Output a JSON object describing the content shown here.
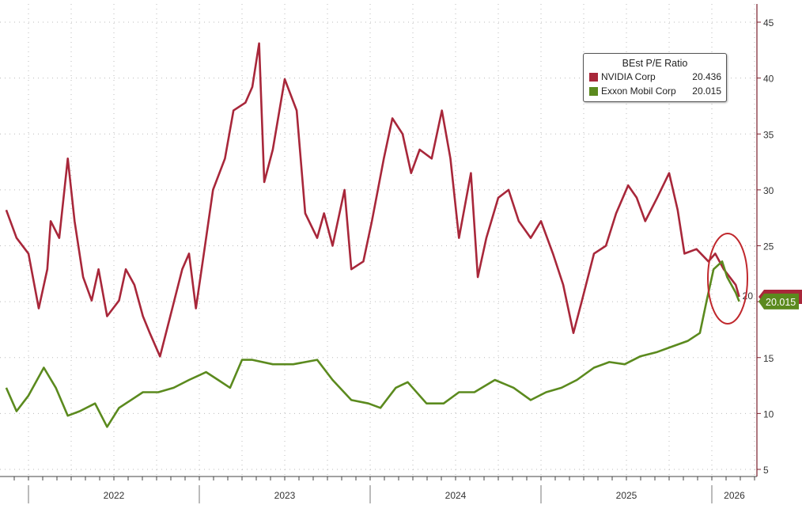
{
  "chart_data": {
    "type": "line",
    "title": "",
    "legend": {
      "title": "BEst P/E Ratio",
      "placement": "top-right"
    },
    "y_axis": {
      "position": "right",
      "range": [
        5,
        45
      ],
      "ticks": [
        5,
        10,
        15,
        20,
        25,
        30,
        35,
        40,
        45
      ]
    },
    "x_axis": {
      "tick_labels": [
        "2022",
        "2023",
        "2024",
        "2025",
        "2026"
      ],
      "range": [
        2021.87,
        2026.2
      ]
    },
    "grid": true,
    "series": [
      {
        "name": "NVIDIA Corp",
        "last_value": "20.436",
        "color": "#a8273a",
        "x": [
          2021.87,
          2021.93,
          2022.0,
          2022.06,
          2022.11,
          2022.13,
          2022.18,
          2022.23,
          2022.27,
          2022.32,
          2022.37,
          2022.41,
          2022.46,
          2022.53,
          2022.57,
          2022.62,
          2022.67,
          2022.71,
          2022.77,
          2022.83,
          2022.9,
          2022.94,
          2022.98,
          2023.04,
          2023.08,
          2023.15,
          2023.2,
          2023.27,
          2023.31,
          2023.35,
          2023.38,
          2023.43,
          2023.5,
          2023.57,
          2023.62,
          2023.69,
          2023.73,
          2023.78,
          2023.85,
          2023.89,
          2023.96,
          2024.01,
          2024.08,
          2024.13,
          2024.19,
          2024.24,
          2024.29,
          2024.36,
          2024.42,
          2024.47,
          2024.52,
          2024.59,
          2024.63,
          2024.68,
          2024.75,
          2024.81,
          2024.87,
          2024.94,
          2025.0,
          2025.07,
          2025.13,
          2025.19,
          2025.24,
          2025.31,
          2025.38,
          2025.44,
          2025.51,
          2025.56,
          2025.61,
          2025.68,
          2025.75,
          2025.8,
          2025.84,
          2025.91,
          2025.98,
          2026.02,
          2026.07,
          2026.14,
          2026.16
        ],
        "y": [
          28.2,
          25.7,
          24.3,
          19.4,
          22.9,
          27.2,
          25.7,
          32.8,
          27.2,
          22.2,
          20.1,
          22.9,
          18.7,
          20.1,
          22.9,
          21.5,
          18.7,
          17.2,
          15.1,
          18.7,
          22.9,
          24.3,
          19.4,
          25.7,
          30.0,
          32.8,
          37.1,
          37.8,
          39.2,
          43.1,
          30.7,
          33.6,
          39.9,
          37.1,
          27.9,
          25.7,
          27.9,
          25.0,
          30.0,
          22.9,
          23.6,
          27.2,
          32.8,
          36.4,
          35.0,
          31.5,
          33.6,
          32.8,
          37.1,
          32.8,
          25.7,
          31.5,
          22.2,
          25.7,
          29.3,
          30.0,
          27.2,
          25.7,
          27.2,
          24.3,
          21.5,
          17.2,
          20.1,
          24.3,
          25.0,
          27.9,
          30.4,
          29.3,
          27.2,
          29.3,
          31.5,
          28.2,
          24.3,
          24.7,
          23.6,
          24.3,
          22.9,
          21.5,
          20.436
        ]
      },
      {
        "name": "Exxon Mobil Corp",
        "last_value": "20.015",
        "color": "#5b8a1e",
        "x": [
          2021.87,
          2021.93,
          2022.0,
          2022.09,
          2022.16,
          2022.23,
          2022.3,
          2022.39,
          2022.46,
          2022.53,
          2022.6,
          2022.67,
          2022.76,
          2022.85,
          2022.94,
          2023.04,
          2023.11,
          2023.18,
          2023.25,
          2023.31,
          2023.43,
          2023.55,
          2023.69,
          2023.78,
          2023.89,
          2023.99,
          2024.06,
          2024.15,
          2024.22,
          2024.33,
          2024.43,
          2024.52,
          2024.61,
          2024.73,
          2024.84,
          2024.94,
          2025.03,
          2025.12,
          2025.21,
          2025.31,
          2025.4,
          2025.49,
          2025.58,
          2025.68,
          2025.77,
          2025.86,
          2025.93,
          2025.97,
          2026.01,
          2026.06,
          2026.09,
          2026.14,
          2026.16
        ],
        "y": [
          12.3,
          10.2,
          11.6,
          14.1,
          12.3,
          9.8,
          10.2,
          10.9,
          8.8,
          10.5,
          11.2,
          11.9,
          11.9,
          12.3,
          13.0,
          13.7,
          13.0,
          12.3,
          14.8,
          14.8,
          14.4,
          14.4,
          14.8,
          13.0,
          11.2,
          10.9,
          10.5,
          12.3,
          12.8,
          10.9,
          10.9,
          11.9,
          11.9,
          13.0,
          12.3,
          11.2,
          11.9,
          12.3,
          13.0,
          14.1,
          14.6,
          14.4,
          15.1,
          15.5,
          16.0,
          16.5,
          17.2,
          20.1,
          22.9,
          23.6,
          22.2,
          20.8,
          20.015
        ]
      }
    ],
    "annotations": [
      {
        "type": "ellipse",
        "color": "#c0282d",
        "around": "latest values 2026"
      }
    ]
  }
}
